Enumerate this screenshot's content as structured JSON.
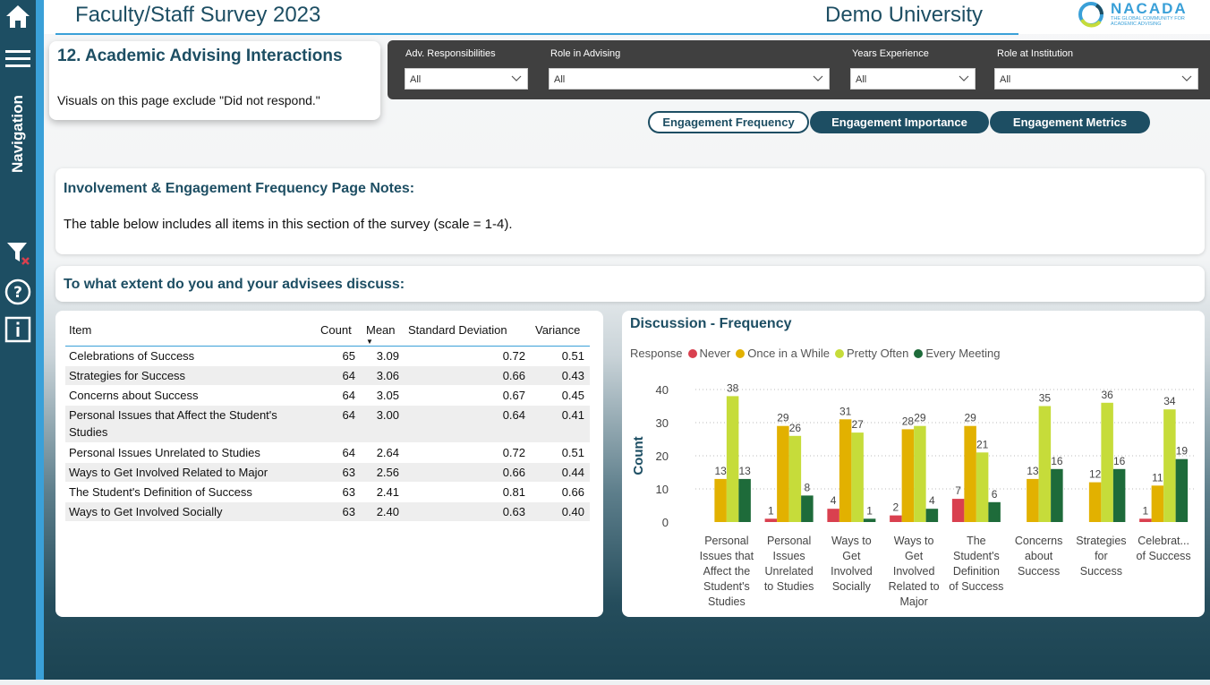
{
  "header": {
    "survey_title": "Faculty/Staff Survey 2023",
    "university": "Demo University",
    "logo_text": "NACADA",
    "logo_sub": "THE GLOBAL COMMUNITY FOR ACADEMIC ADVISING"
  },
  "nav": {
    "label": "Navigation"
  },
  "page": {
    "title": "12. Academic Advising Interactions",
    "subtitle": "Visuals on this page exclude \"Did not respond.\""
  },
  "filters": [
    {
      "label": "Adv. Responsibilities",
      "value": "All"
    },
    {
      "label": "Role in Advising",
      "value": "All"
    },
    {
      "label": "Years Experience",
      "value": "All"
    },
    {
      "label": "Role at Institution",
      "value": "All"
    }
  ],
  "tabs": [
    {
      "label": "Engagement Frequency",
      "active": true
    },
    {
      "label": "Engagement Importance",
      "active": false
    },
    {
      "label": "Engagement Metrics",
      "active": false
    }
  ],
  "notes": {
    "title": "Involvement & Engagement Frequency Page Notes:",
    "text": "The table below includes all items in this section of the survey (scale = 1-4)."
  },
  "question": {
    "title": "To what extent do you and your advisees discuss:"
  },
  "table": {
    "headers": [
      "Item",
      "Count",
      "Mean",
      "Standard Deviation",
      "Variance"
    ],
    "rows": [
      {
        "item": "Celebrations of Success",
        "count": "65",
        "mean": "3.09",
        "sd": "0.72",
        "var": "0.51"
      },
      {
        "item": "Strategies for Success",
        "count": "64",
        "mean": "3.06",
        "sd": "0.66",
        "var": "0.43"
      },
      {
        "item": "Concerns about Success",
        "count": "64",
        "mean": "3.05",
        "sd": "0.67",
        "var": "0.45"
      },
      {
        "item": "Personal Issues that Affect the Student's Studies",
        "count": "64",
        "mean": "3.00",
        "sd": "0.64",
        "var": "0.41"
      },
      {
        "item": "Personal Issues Unrelated to Studies",
        "count": "64",
        "mean": "2.64",
        "sd": "0.72",
        "var": "0.51"
      },
      {
        "item": "Ways to Get Involved Related to Major",
        "count": "63",
        "mean": "2.56",
        "sd": "0.66",
        "var": "0.44"
      },
      {
        "item": "The Student's Definition of Success",
        "count": "63",
        "mean": "2.41",
        "sd": "0.81",
        "var": "0.66"
      },
      {
        "item": "Ways to Get Involved Socially",
        "count": "63",
        "mean": "2.40",
        "sd": "0.63",
        "var": "0.40"
      }
    ]
  },
  "chart_data": {
    "type": "bar",
    "title": "Discussion - Frequency",
    "legend_title": "Response",
    "ylabel": "Count",
    "xlabel": "",
    "ylim": [
      0,
      40
    ],
    "yticks": [
      0,
      10,
      20,
      30,
      40
    ],
    "grid": true,
    "legend_position": "top-left",
    "categories": [
      "Personal Issues that Affect the Student's Studies",
      "Personal Issues Unrelated to Studies",
      "Ways to Get Involved Socially",
      "Ways to Get Involved Related to Major",
      "The Student's Definition of Success",
      "Concerns about Success",
      "Strategies for Success",
      "Celebrat... of Success"
    ],
    "category_lines": [
      [
        "Personal",
        "Issues that",
        "Affect the",
        "Student's",
        "Studies"
      ],
      [
        "Personal",
        "Issues",
        "Unrelated",
        "to Studies"
      ],
      [
        "Ways to",
        "Get",
        "Involved",
        "Socially"
      ],
      [
        "Ways to",
        "Get",
        "Involved",
        "Related to",
        "Major"
      ],
      [
        "The",
        "Student's",
        "Definition",
        "of Success"
      ],
      [
        "Concerns",
        "about",
        "Success"
      ],
      [
        "Strategies",
        "for",
        "Success"
      ],
      [
        "Celebrat...",
        "of Success"
      ]
    ],
    "series": [
      {
        "name": "Never",
        "color": "#d9404f",
        "values": [
          null,
          1,
          4,
          2,
          7,
          null,
          null,
          1
        ]
      },
      {
        "name": "Once in a While",
        "color": "#e2b100",
        "values": [
          13,
          29,
          31,
          28,
          29,
          13,
          12,
          11
        ]
      },
      {
        "name": "Pretty Often",
        "color": "#c6dc3a",
        "values": [
          38,
          26,
          27,
          29,
          21,
          35,
          36,
          34
        ]
      },
      {
        "name": "Every Meeting",
        "color": "#1e6b3a",
        "values": [
          13,
          8,
          1,
          4,
          6,
          16,
          16,
          19
        ]
      }
    ]
  }
}
